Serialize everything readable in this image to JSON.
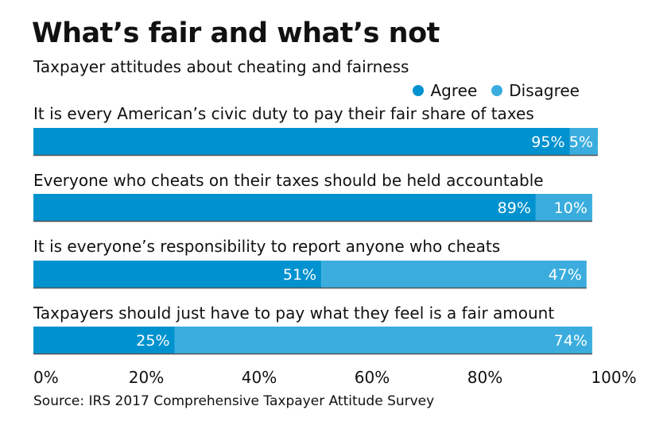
{
  "chart_data": {
    "type": "bar",
    "orientation": "horizontal-stacked",
    "title": "What’s fair and what’s not",
    "subtitle": "Taxpayer attitudes about cheating and fairness",
    "categories": [
      "It is every American’s civic duty to pay their fair share of taxes",
      "Everyone who cheats on their taxes should be held accountable",
      "It is everyone’s responsibility to report anyone who cheats",
      "Taxpayers should just have to pay what they feel is a fair amount"
    ],
    "series": [
      {
        "name": "Agree",
        "color": "#0092cf",
        "values": [
          95,
          89,
          51,
          25
        ],
        "labels": [
          "95%",
          "89%",
          "51%",
          "25%"
        ]
      },
      {
        "name": "Disagree",
        "color": "#3aadde",
        "values": [
          5,
          10,
          47,
          74
        ],
        "labels": [
          "5%",
          "10%",
          "47%",
          "74%"
        ]
      }
    ],
    "xlim": [
      0,
      100
    ],
    "xticks": [
      "0%",
      "20%",
      "40%",
      "60%",
      "80%",
      "100%"
    ],
    "legend": "top-right",
    "grid": false,
    "source": "Source: IRS 2017 Comprehensive Taxpayer Attitude Survey"
  }
}
